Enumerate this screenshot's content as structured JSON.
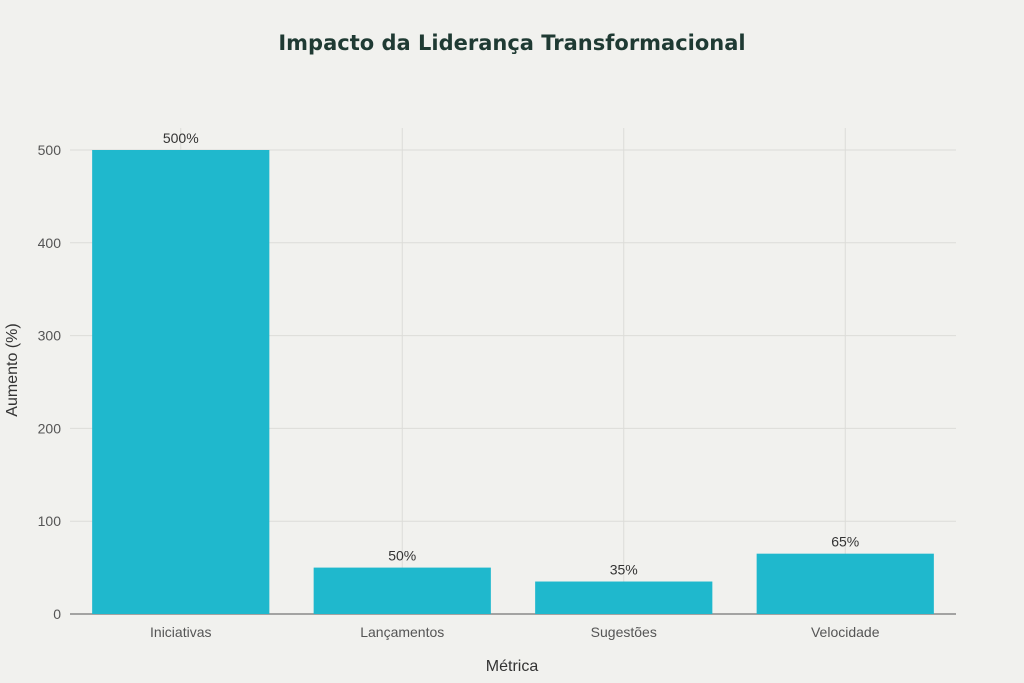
{
  "chart_data": {
    "type": "bar",
    "title": "Impacto da Liderança Transformacional",
    "xlabel": "Métrica",
    "ylabel": "Aumento (%)",
    "categories": [
      "Iniciativas",
      "Lançamentos",
      "Sugestões",
      "Velocidade"
    ],
    "values": [
      500,
      50,
      35,
      65
    ],
    "data_labels": [
      "500%",
      "50%",
      "35%",
      "65%"
    ],
    "yticks": [
      0,
      100,
      200,
      300,
      400,
      500
    ],
    "ylim": [
      0,
      525
    ],
    "grid": true,
    "legend": "none",
    "colors": {
      "bar": "#1fb8cd",
      "grid": "#dcdcd8",
      "axis": "#555555"
    }
  }
}
